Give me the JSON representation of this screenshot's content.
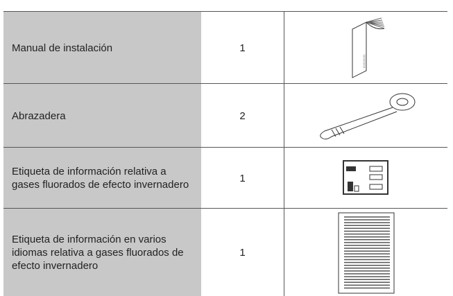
{
  "table": {
    "rows": [
      [
        "Manual de instalación",
        1
      ],
      [
        "Abrazadera",
        2
      ],
      [
        "Etiqueta de información relativa a gases fluorados de efecto invernadero",
        1
      ],
      [
        "Etiqueta de información en varios idiomas relativa a gases fluorados de efecto invernadero",
        1
      ]
    ]
  }
}
